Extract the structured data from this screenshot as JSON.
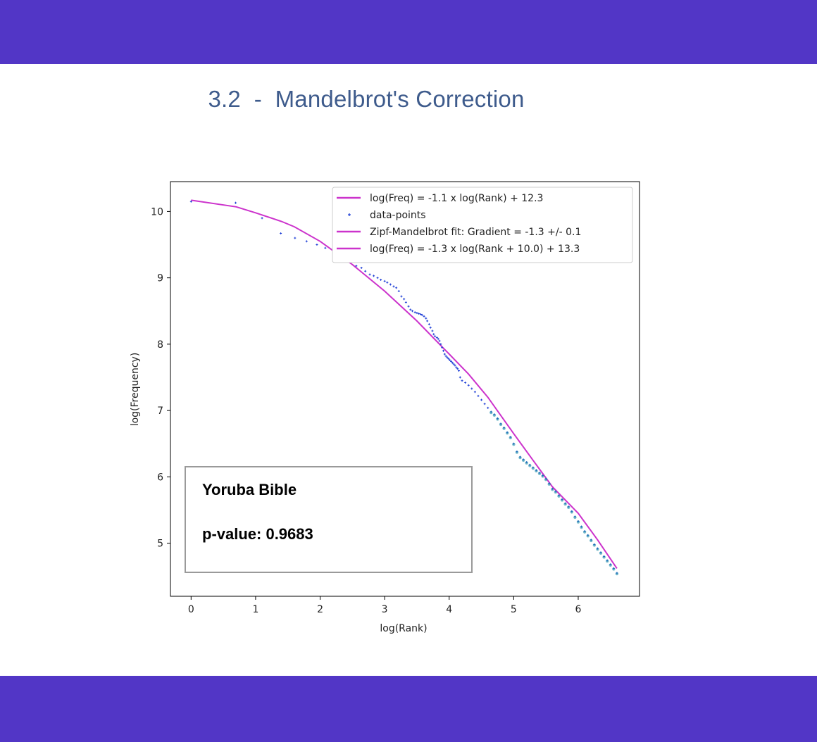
{
  "slide": {
    "title": "3.2  -  Mandelbrot's Correction",
    "accent_color": "#5236c6"
  },
  "chart_data": {
    "type": "scatter",
    "xlabel": "log(Rank)",
    "ylabel": "log(Frequency)",
    "xlim": [
      -0.32,
      6.95
    ],
    "ylim": [
      4.2,
      10.45
    ],
    "x_ticks": [
      "0",
      "1",
      "2",
      "3",
      "4",
      "5",
      "6"
    ],
    "y_ticks": [
      "5",
      "6",
      "7",
      "8",
      "9",
      "10"
    ],
    "legend_position": "top-right",
    "legend": [
      {
        "label": "log(Freq) = -1.1 x log(Rank) + 12.3",
        "kind": "line",
        "color": "#cc33cc"
      },
      {
        "label": "data-points",
        "kind": "marker",
        "color": "#1f3fd6"
      },
      {
        "label": "Zipf-Mandelbrot fit: Gradient = -1.3 +/- 0.1",
        "kind": "line",
        "color": "#cc33cc"
      },
      {
        "label": "log(Freq) = -1.3 x log(Rank + 10.0) + 13.3",
        "kind": "line",
        "color": "#cc33cc"
      }
    ],
    "series": [
      {
        "type": "line",
        "color": "#cc33cc",
        "x": [
          0,
          0.7,
          1.0,
          1.4,
          1.6,
          2.0,
          2.5,
          3.0,
          3.5,
          4.0,
          4.3,
          4.6,
          5.0,
          5.3,
          5.6,
          6.0,
          6.3,
          6.6
        ],
        "y": [
          10.17,
          10.07,
          9.98,
          9.85,
          9.77,
          9.55,
          9.2,
          8.8,
          8.35,
          7.85,
          7.55,
          7.2,
          6.65,
          6.25,
          5.85,
          5.45,
          5.05,
          4.62
        ]
      },
      {
        "type": "scatter",
        "name": "data-points",
        "color": "#1f3fd6",
        "x": [
          0.0,
          0.69,
          1.1,
          1.39,
          1.61,
          1.79,
          1.95,
          2.08,
          2.2,
          2.3,
          2.4,
          2.48,
          2.56,
          2.64,
          2.7,
          2.77,
          2.83,
          2.89,
          2.94,
          3.0,
          3.04,
          3.09,
          3.14,
          3.18,
          3.22,
          3.26,
          3.3,
          3.33,
          3.37,
          3.4,
          3.43,
          3.47,
          3.5,
          3.53,
          3.56,
          3.58,
          3.61,
          3.64,
          3.66,
          3.69,
          3.71,
          3.74,
          3.76,
          3.78,
          3.81,
          3.83,
          3.85,
          3.87,
          3.89,
          3.91,
          3.93,
          3.95,
          3.97,
          3.99,
          4.01,
          4.03,
          4.05,
          4.07,
          4.09,
          4.11,
          4.13,
          4.15,
          4.17,
          4.2,
          4.25,
          4.3,
          4.35,
          4.4,
          4.45,
          4.5,
          4.55,
          4.6,
          4.65,
          4.7,
          4.75,
          4.8,
          4.85,
          4.9,
          4.95,
          5.0,
          5.05,
          5.1,
          5.15,
          5.2,
          5.25,
          5.3,
          5.35,
          5.4,
          5.45,
          5.5,
          5.55,
          5.6,
          5.65,
          5.7,
          5.75,
          5.8,
          5.85,
          5.9,
          5.95,
          6.0,
          6.05,
          6.1,
          6.15,
          6.2,
          6.25,
          6.3,
          6.35,
          6.4,
          6.45,
          6.5,
          6.55,
          6.6
        ],
        "y": [
          10.15,
          10.13,
          9.9,
          9.67,
          9.6,
          9.55,
          9.5,
          9.45,
          9.42,
          9.35,
          9.32,
          9.28,
          9.18,
          9.15,
          9.1,
          9.05,
          9.03,
          9.0,
          8.97,
          8.95,
          8.93,
          8.9,
          8.87,
          8.85,
          8.8,
          8.72,
          8.68,
          8.63,
          8.57,
          8.52,
          8.5,
          8.48,
          8.47,
          8.46,
          8.45,
          8.44,
          8.42,
          8.39,
          8.35,
          8.3,
          8.25,
          8.2,
          8.15,
          8.12,
          8.1,
          8.08,
          8.05,
          8.0,
          7.95,
          7.9,
          7.85,
          7.82,
          7.8,
          7.78,
          7.76,
          7.74,
          7.72,
          7.7,
          7.68,
          7.65,
          7.63,
          7.6,
          7.5,
          7.45,
          7.42,
          7.38,
          7.33,
          7.28,
          7.22,
          7.16,
          7.1,
          7.04,
          6.98,
          6.94,
          6.88,
          6.8,
          6.74,
          6.67,
          6.6,
          6.5,
          6.38,
          6.3,
          6.26,
          6.22,
          6.18,
          6.14,
          6.1,
          6.06,
          6.02,
          5.97,
          5.9,
          5.82,
          5.78,
          5.72,
          5.66,
          5.6,
          5.55,
          5.48,
          5.4,
          5.33,
          5.25,
          5.18,
          5.12,
          5.05,
          4.98,
          4.92,
          4.86,
          4.8,
          4.74,
          4.68,
          4.62,
          4.55
        ]
      }
    ],
    "annotation": {
      "title": "Yoruba Bible",
      "pvalue": "p-value: 0.9683"
    }
  }
}
